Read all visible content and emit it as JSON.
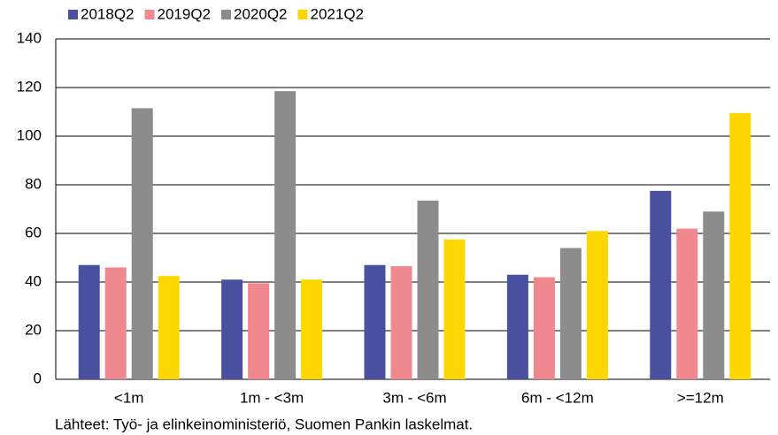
{
  "chart_data": {
    "type": "bar",
    "categories": [
      "<1m",
      "1m - <3m",
      "3m - <6m",
      "6m - <12m",
      ">=12m"
    ],
    "series": [
      {
        "name": "2018Q2",
        "color": "#4a50a0",
        "values": [
          47,
          41,
          47,
          43,
          77.5
        ]
      },
      {
        "name": "2019Q2",
        "color": "#f0888f",
        "values": [
          46,
          39.5,
          46.5,
          42,
          62
        ]
      },
      {
        "name": "2020Q2",
        "color": "#8c8c8c",
        "values": [
          111.5,
          118.5,
          73.5,
          54,
          69
        ]
      },
      {
        "name": "2021Q2",
        "color": "#ffd700",
        "values": [
          42.5,
          41,
          57.5,
          61,
          109.5
        ]
      }
    ],
    "ylim": [
      0,
      140
    ],
    "yticks": [
      0,
      20,
      40,
      60,
      80,
      100,
      120,
      140
    ],
    "grid": true,
    "legend": "top-left",
    "note": "Lähteet: Työ- ja elinkeinoministeriö, Suomen Pankin laskelmat."
  }
}
